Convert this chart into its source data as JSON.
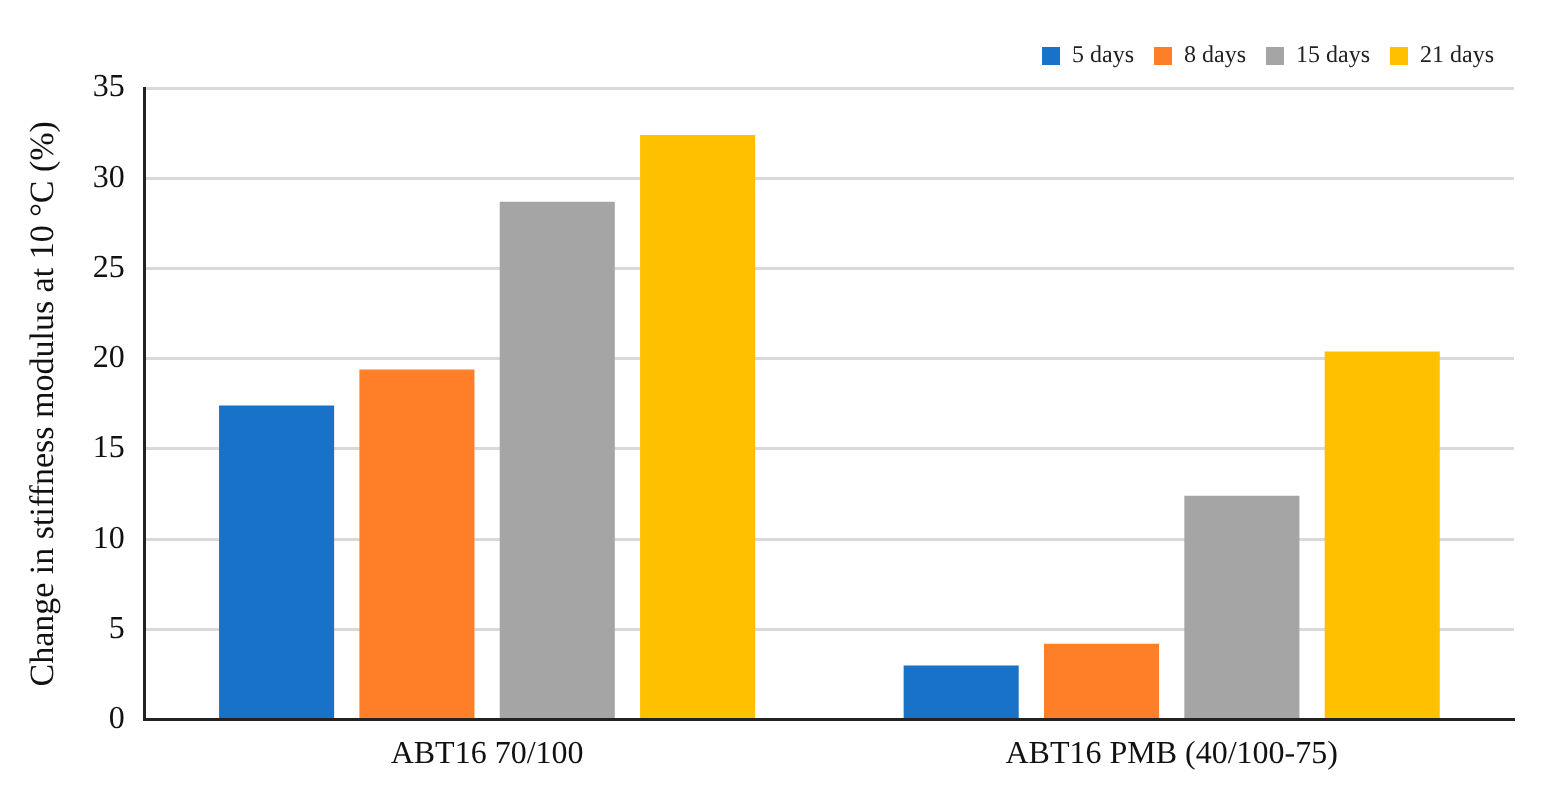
{
  "chart_data": {
    "type": "bar",
    "ylabel": "Change in stiffness modulus at 10 °C (%)",
    "categories": [
      "ABT16 70/100",
      "ABT16 PMB (40/100-75)"
    ],
    "series": [
      {
        "name": "5 days",
        "color": "#1872c8",
        "values": [
          17.4,
          3.0
        ]
      },
      {
        "name": "8 days",
        "color": "#fe7f27",
        "values": [
          19.4,
          4.2
        ]
      },
      {
        "name": "15 days",
        "color": "#a5a5a5",
        "values": [
          28.7,
          12.4
        ]
      },
      {
        "name": "21 days",
        "color": "#ffc000",
        "values": [
          32.4,
          20.4
        ]
      }
    ],
    "ylim": [
      0,
      35
    ],
    "yticks": [
      0,
      5,
      10,
      15,
      20,
      25,
      30,
      35
    ],
    "grid": "y",
    "legend": "top right"
  }
}
